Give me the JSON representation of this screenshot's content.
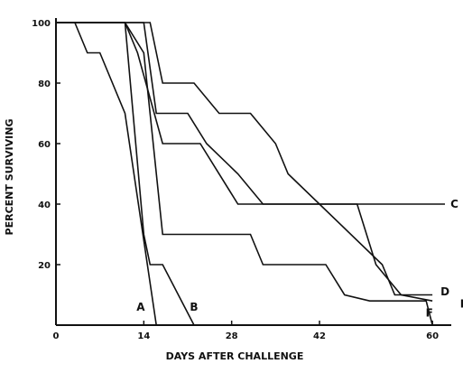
{
  "chart_data": {
    "type": "line",
    "title": "",
    "xlabel": "DAYS AFTER CHALLENGE",
    "ylabel": "PERCENT SURVIVING",
    "xlim": [
      0,
      63
    ],
    "ylim": [
      0,
      100
    ],
    "x_ticks": [
      0,
      14,
      28,
      42,
      60
    ],
    "y_ticks": [
      20,
      40,
      60,
      80,
      100
    ],
    "grid": false,
    "step": true,
    "series": [
      {
        "name": "A",
        "x": [
          0,
          3,
          5,
          7,
          11,
          16
        ],
        "y": [
          100,
          100,
          90,
          90,
          70,
          0
        ]
      },
      {
        "name": "B",
        "x": [
          0,
          11,
          14,
          15,
          17,
          22
        ],
        "y": [
          100,
          100,
          30,
          20,
          20,
          0
        ]
      },
      {
        "name": "C",
        "x": [
          0,
          11,
          13,
          17,
          23,
          29,
          62
        ],
        "y": [
          100,
          100,
          90,
          60,
          60,
          40,
          40
        ]
      },
      {
        "name": "D",
        "x": [
          0,
          15,
          17,
          22,
          26,
          31,
          35,
          37,
          52,
          54,
          59,
          60
        ],
        "y": [
          100,
          100,
          80,
          80,
          70,
          70,
          60,
          50,
          20,
          10,
          10,
          10
        ]
      },
      {
        "name": "E",
        "x": [
          0,
          14,
          16,
          21,
          24,
          29,
          33,
          48,
          51,
          55,
          60
        ],
        "y": [
          100,
          100,
          70,
          70,
          60,
          50,
          40,
          40,
          20,
          10,
          8
        ]
      },
      {
        "name": "F",
        "x": [
          0,
          11,
          14,
          17,
          31,
          33,
          43,
          46,
          50,
          59,
          60
        ],
        "y": [
          100,
          100,
          90,
          30,
          30,
          20,
          20,
          10,
          8,
          8,
          0
        ]
      }
    ],
    "label_positions": {
      "A": [
        13.5,
        6
      ],
      "B": [
        22,
        6
      ],
      "C": [
        63.5,
        40
      ],
      "D": [
        62,
        11
      ],
      "E": [
        65,
        7
      ],
      "F": [
        59.5,
        4
      ]
    }
  }
}
